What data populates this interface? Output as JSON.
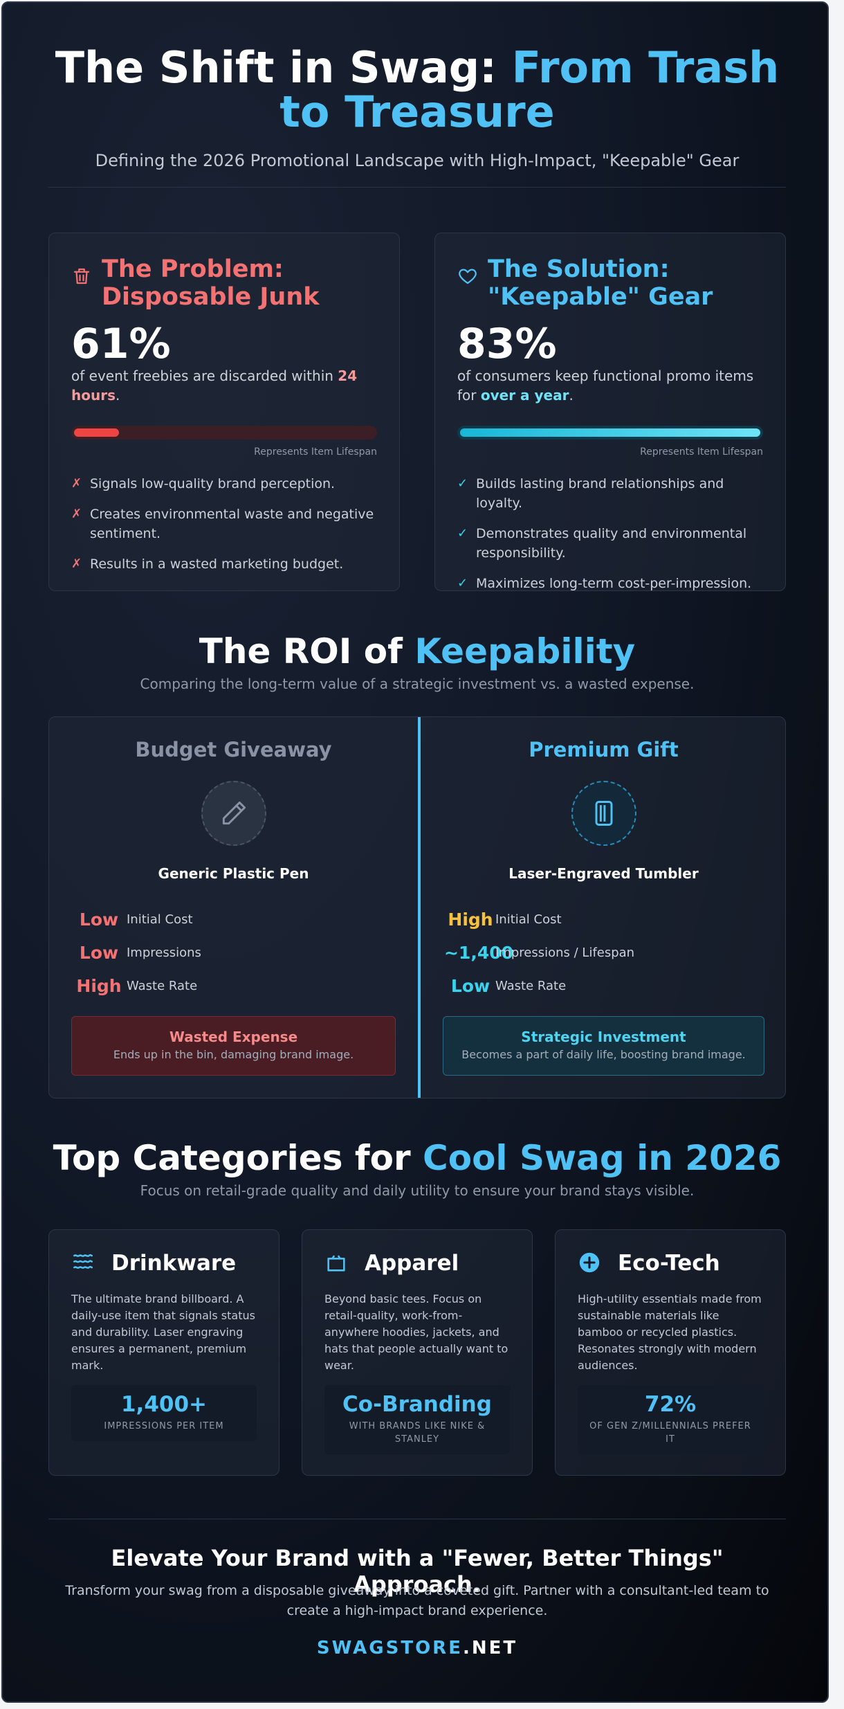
{
  "hero": {
    "title_white": "The Shift in Swag: ",
    "title_accent": "From Trash to Treasure",
    "subtitle": "Defining the 2026 Promotional Landscape with High-Impact, \"Keepable\" Gear"
  },
  "problem": {
    "icon": "trash-icon",
    "title": "The Problem: Disposable Junk",
    "pct": "61%",
    "desc_before": "of event freebies are discarded within ",
    "desc_strong": "24 hours",
    "desc_after": ".",
    "lifespan_level": 0.15,
    "bar_caption": "Represents Item Lifespan",
    "mark": "✗",
    "bullets": [
      "Signals low-quality brand perception.",
      "Creates environmental waste and negative sentiment.",
      "Results in a wasted marketing budget."
    ]
  },
  "solution": {
    "icon": "heart-icon",
    "title": "The Solution: \"Keepable\" Gear",
    "pct": "83%",
    "desc_before": "of consumers keep functional promo items for ",
    "desc_strong": "over a year",
    "desc_after": ".",
    "lifespan_level": 1.0,
    "bar_caption": "Represents Item Lifespan",
    "mark": "✓",
    "bullets": [
      "Builds lasting brand relationships and loyalty.",
      "Demonstrates quality and environmental responsibility.",
      "Maximizes long-term cost-per-impression."
    ]
  },
  "roi": {
    "title_white": "The ROI of ",
    "title_accent": "Keepability",
    "subtitle": "Comparing the long-term value of a strategic investment vs. a wasted expense.",
    "budget": {
      "name": "Budget Giveaway",
      "icon": "pen-icon",
      "item": "Generic Plastic Pen",
      "metrics": [
        {
          "value": "Low",
          "label": "Initial Cost"
        },
        {
          "value": "Low",
          "label": "Impressions"
        },
        {
          "value": "High",
          "label": "Waste Rate"
        }
      ],
      "verdict_title": "Wasted Expense",
      "verdict_sub": "Ends up in the bin, damaging brand image."
    },
    "premium": {
      "name": "Premium Gift",
      "icon": "tumbler-icon",
      "item": "Laser-Engraved Tumbler",
      "metrics": [
        {
          "value": "High",
          "label": "Initial Cost"
        },
        {
          "value": "~1,400",
          "label": "Impressions / Lifespan"
        },
        {
          "value": "Low",
          "label": "Waste Rate"
        }
      ],
      "verdict_title": "Strategic Investment",
      "verdict_sub": "Becomes a part of daily life, boosting brand image."
    }
  },
  "categories": {
    "title_white": "Top Categories for ",
    "title_accent": "Cool Swag in 2026",
    "subtitle": "Focus on retail-grade quality and daily utility to ensure your brand stays visible.",
    "items": [
      {
        "icon": "water-icon",
        "title": "Drinkware",
        "desc": "The ultimate brand billboard. A daily-use item that signals status and durability. Laser engraving ensures a permanent, premium mark.",
        "stat": "1,400+",
        "stat_label": "IMPRESSIONS PER ITEM"
      },
      {
        "icon": "shirt-icon",
        "title": "Apparel",
        "desc": "Beyond basic tees. Focus on retail-quality, work-from-anywhere hoodies, jackets, and hats that people actually want to wear.",
        "stat": "Co-Branding",
        "stat_label": "WITH BRANDS LIKE NIKE & STANLEY"
      },
      {
        "icon": "plus-circle-icon",
        "title": "Eco-Tech",
        "desc": "High-utility essentials made from sustainable materials like bamboo or recycled plastics. Resonates strongly with modern audiences.",
        "stat": "72%",
        "stat_label": "OF GEN Z/MILLENNIALS PREFER IT"
      }
    ]
  },
  "footer": {
    "title": "Elevate Your Brand with a \"Fewer, Better Things\" Approach.",
    "text": "Transform your swag from a disposable giveaway into a coveted gift. Partner with a consultant-led team to create a high-impact brand experience.",
    "brand_main": "SWAGSTORE",
    "brand_tld": ".NET"
  },
  "colors": {
    "accent": "#4fc1f4",
    "problem": "#f47272",
    "high_warning": "#f6c23e",
    "positive": "#38d4ee",
    "background": "#111827"
  }
}
